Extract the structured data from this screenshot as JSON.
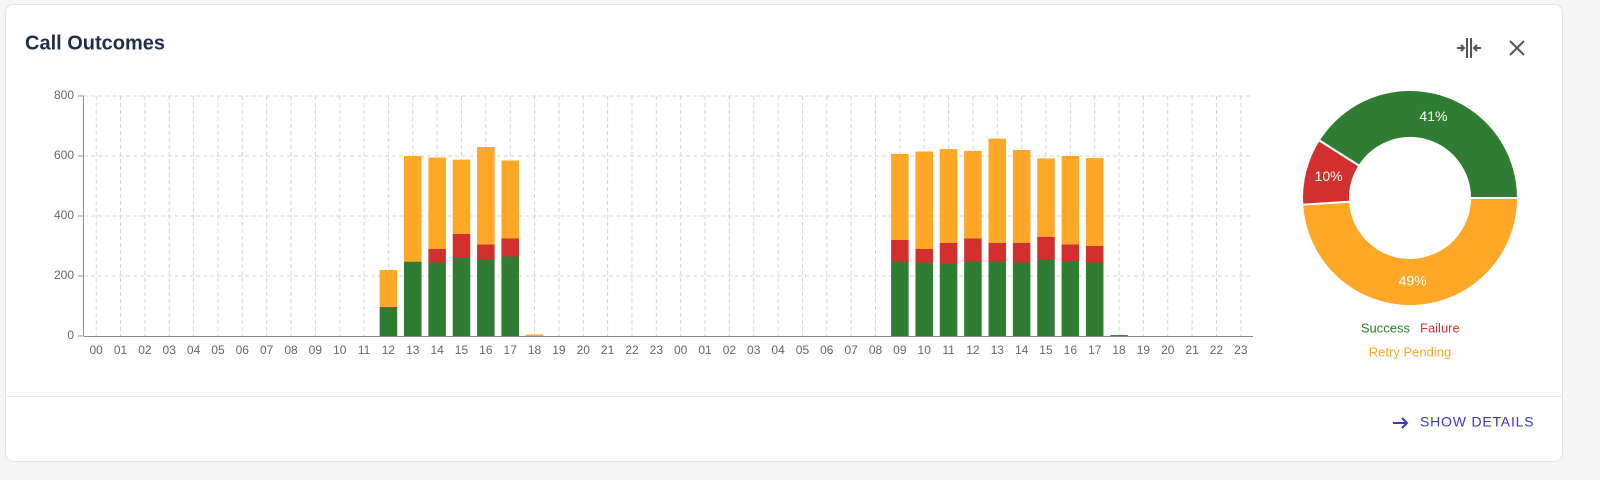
{
  "card": {
    "title": "Call Outcomes",
    "action": "SHOW DETAILS"
  },
  "chart_data": [
    {
      "type": "bar",
      "stacked": true,
      "grid": true,
      "categories": [
        "00",
        "01",
        "02",
        "03",
        "04",
        "05",
        "06",
        "07",
        "08",
        "09",
        "10",
        "11",
        "12",
        "13",
        "14",
        "15",
        "16",
        "17",
        "18",
        "19",
        "20",
        "21",
        "22",
        "23",
        "00",
        "01",
        "02",
        "03",
        "04",
        "05",
        "06",
        "07",
        "08",
        "09",
        "10",
        "11",
        "12",
        "13",
        "14",
        "15",
        "16",
        "17",
        "18",
        "19",
        "20",
        "21",
        "22",
        "23"
      ],
      "ylim": [
        0,
        800
      ],
      "yticks": [
        0,
        200,
        400,
        600,
        800
      ],
      "series": [
        {
          "color": "#2e7d32",
          "values": [
            0,
            0,
            0,
            0,
            0,
            0,
            0,
            0,
            0,
            0,
            0,
            0,
            97,
            248,
            245,
            260,
            255,
            265,
            0,
            0,
            0,
            0,
            0,
            0,
            0,
            0,
            0,
            0,
            0,
            0,
            0,
            0,
            0,
            250,
            245,
            240,
            250,
            250,
            245,
            255,
            250,
            245,
            3,
            0,
            0,
            0,
            0,
            0
          ]
        },
        {
          "color": "#d32f2f",
          "values": [
            0,
            0,
            0,
            0,
            0,
            0,
            0,
            0,
            0,
            0,
            0,
            0,
            0,
            0,
            45,
            80,
            50,
            60,
            0,
            0,
            0,
            0,
            0,
            0,
            0,
            0,
            0,
            0,
            0,
            0,
            0,
            0,
            0,
            70,
            45,
            70,
            75,
            60,
            65,
            75,
            55,
            55,
            0,
            0,
            0,
            0,
            0,
            0
          ]
        },
        {
          "color": "#ffa726",
          "values": [
            0,
            0,
            0,
            0,
            0,
            0,
            0,
            0,
            0,
            0,
            0,
            0,
            123,
            352,
            305,
            248,
            325,
            260,
            5,
            0,
            0,
            0,
            0,
            0,
            0,
            0,
            0,
            0,
            0,
            0,
            0,
            0,
            0,
            287,
            325,
            313,
            292,
            348,
            310,
            262,
            295,
            293,
            0,
            0,
            0,
            0,
            0,
            0
          ]
        }
      ]
    },
    {
      "type": "pie",
      "donut": true,
      "categories": [
        "Success",
        "Failure",
        "Retry Pending"
      ],
      "values": [
        41,
        10,
        49
      ],
      "value_labels": [
        "41%",
        "10%",
        "49%"
      ],
      "colors": [
        "#2e7d32",
        "#d32f2f",
        "#ffa726"
      ]
    }
  ]
}
